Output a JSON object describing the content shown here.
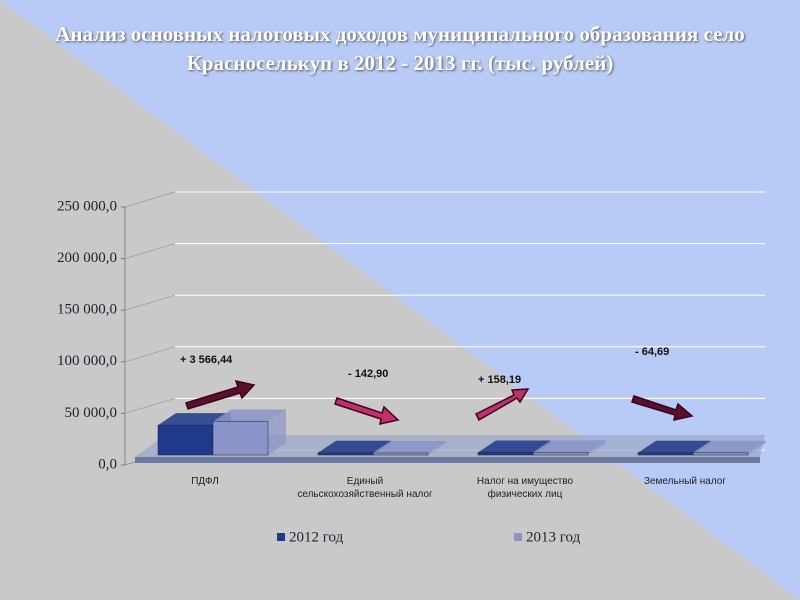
{
  "chart_data": {
    "type": "bar3d",
    "title": "Анализ основных налоговых доходов муниципального образования село Красноселькуп  в 2012 - 2013 гг. (тыс. рублей)",
    "categories": [
      "ПДФЛ",
      "Единый сельскохозяйственный налог",
      "Налог на имущество физических лиц",
      "Земельный налог"
    ],
    "series": [
      {
        "name": "2012 год",
        "color": "#1f3a8a",
        "values": [
          27000,
          200,
          500,
          300
        ]
      },
      {
        "name": "2013 год",
        "color": "#8a94c8",
        "values": [
          30566.44,
          57.1,
          658.19,
          235.31
        ]
      }
    ],
    "annotations": [
      "+ 3 566,44",
      "- 142,90",
      "+ 158,19",
      "- 64,69"
    ],
    "ylim": [
      0,
      250000
    ],
    "yticks": [
      {
        "value": 0,
        "label": "0,0"
      },
      {
        "value": 50000,
        "label": "50 000,0"
      },
      {
        "value": 100000,
        "label": "100 000,0"
      },
      {
        "value": 150000,
        "label": "150 000,0"
      },
      {
        "value": 200000,
        "label": "200 000,0"
      },
      {
        "value": 250000,
        "label": "250 000,0"
      }
    ],
    "grid": true
  }
}
